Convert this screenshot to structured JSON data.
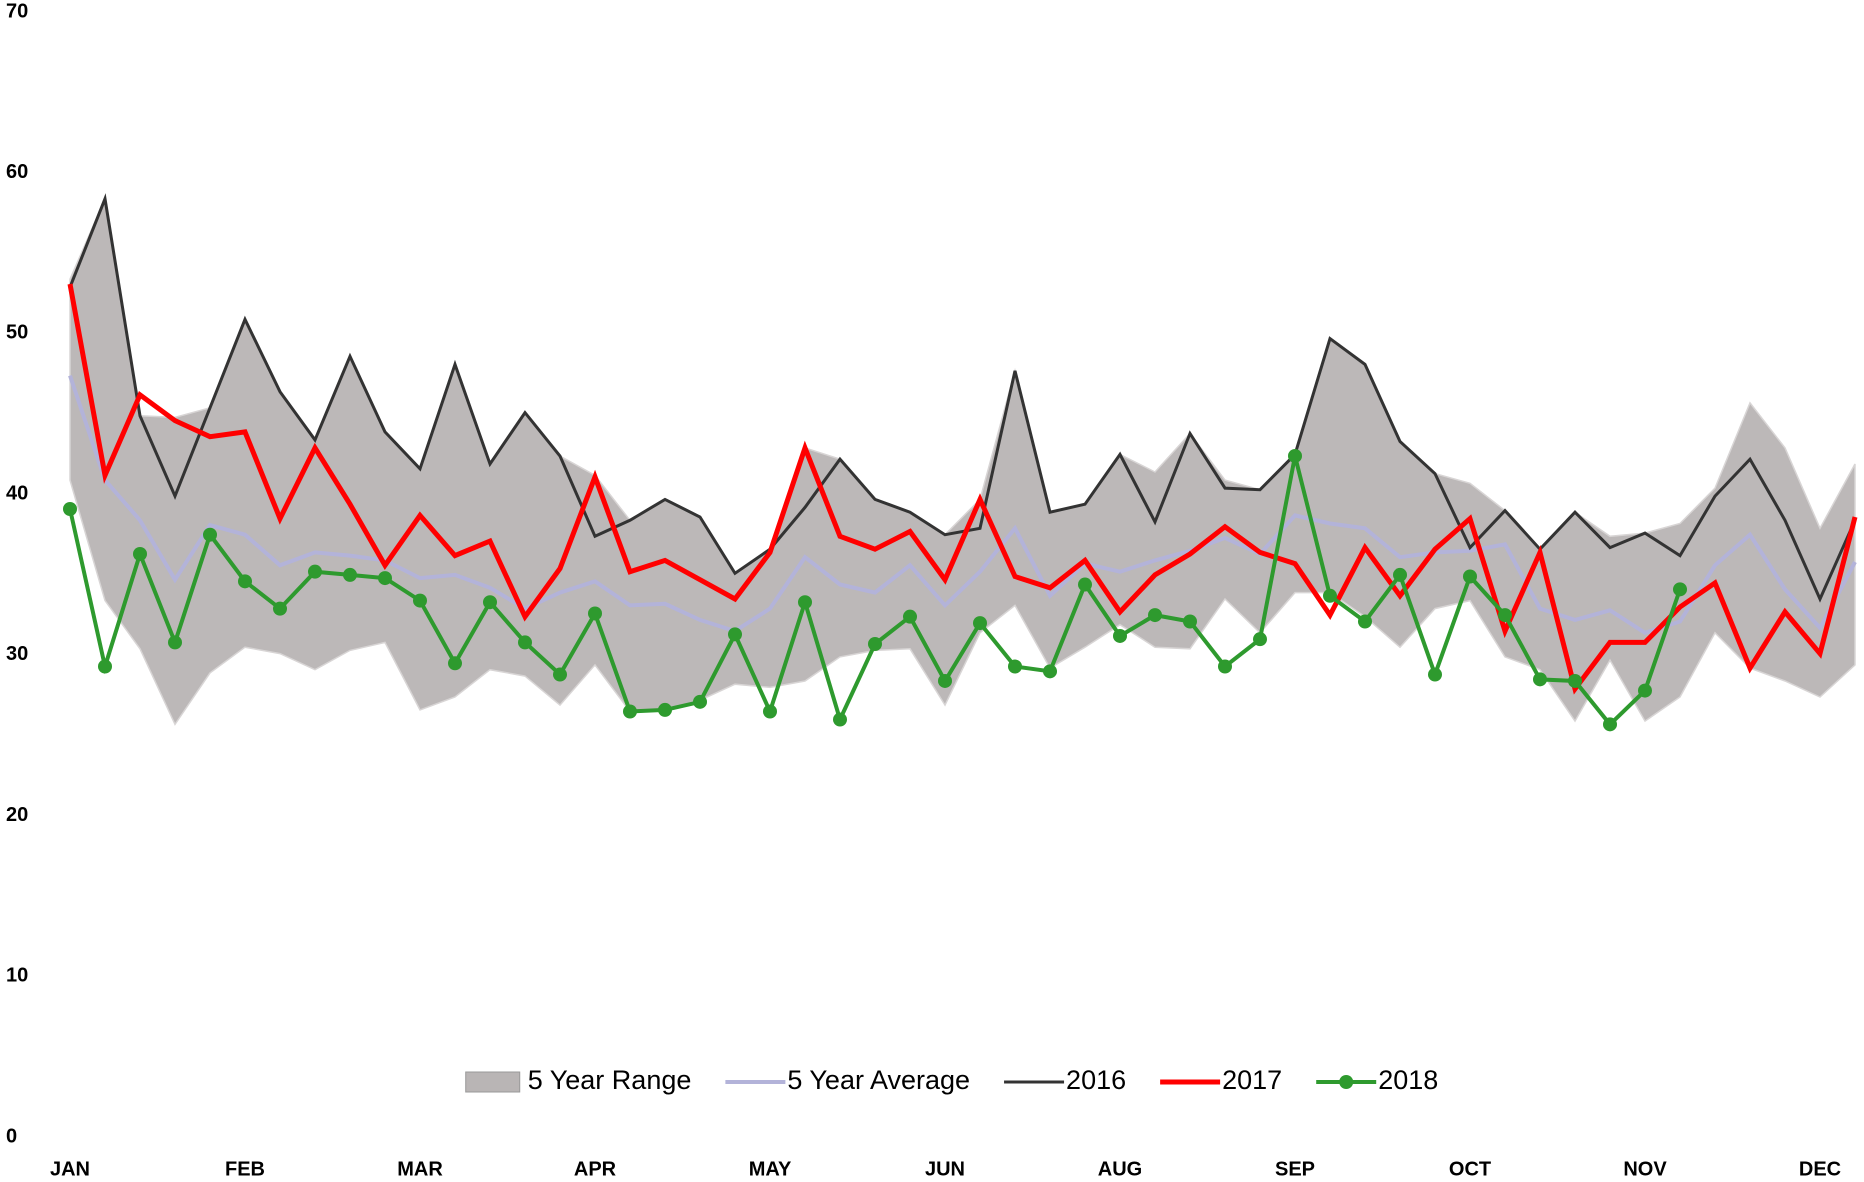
{
  "chart_data": {
    "type": "line",
    "categories": [
      "JAN",
      null,
      null,
      null,
      null,
      "FEB",
      null,
      null,
      null,
      null,
      "MAR",
      null,
      null,
      null,
      null,
      "APR",
      null,
      null,
      null,
      null,
      "MAY",
      null,
      null,
      null,
      null,
      "JUN",
      null,
      null,
      null,
      null,
      "AUG",
      null,
      null,
      null,
      null,
      "SEP",
      null,
      null,
      null,
      null,
      "OCT",
      null,
      null,
      null,
      null,
      "NOV",
      null,
      null,
      null,
      null,
      "DEC",
      null
    ],
    "ylim": [
      0,
      70
    ],
    "yticks": [
      0,
      10,
      20,
      30,
      40,
      50,
      60,
      70
    ],
    "legend": "bottom",
    "series": [
      {
        "name": "5 Year Range",
        "type": "band",
        "color": "#b9b5b5",
        "low": [
          41,
          33.5,
          30.5,
          25.8,
          29,
          30.6,
          30.2,
          29.2,
          30.4,
          30.9,
          26.7,
          27.5,
          29.2,
          28.8,
          27,
          29.5,
          26.6,
          26.7,
          27.3,
          28.3,
          28.1,
          28.5,
          30,
          30.4,
          30.5,
          27,
          31.5,
          33.2,
          29.3,
          30.6,
          32,
          30.6,
          30.5,
          33.6,
          31.5,
          34,
          34,
          32.5,
          30.6,
          33,
          33.5,
          30,
          29.2,
          26,
          29.8,
          26,
          27.5,
          31.5,
          29.3,
          28.5,
          27.5,
          29.5
        ],
        "high": [
          53.5,
          58.5,
          45,
          44.9,
          45.5,
          51,
          46.5,
          43.5,
          48.7,
          44,
          41.7,
          48.2,
          42,
          45.2,
          42.5,
          41.3,
          38.5,
          39.8,
          38.7,
          35.2,
          36.7,
          43,
          42.3,
          39.8,
          39,
          37.6,
          39.8,
          47.8,
          39,
          39.5,
          42.6,
          41.5,
          43.9,
          41,
          40.4,
          42.6,
          49.8,
          48.2,
          43.4,
          41.4,
          40.8,
          39.1,
          36.7,
          39,
          37.5,
          37.7,
          38.3,
          40.5,
          45.8,
          43,
          38,
          42
        ]
      },
      {
        "name": "5 Year Average",
        "color": "#b3b3d9",
        "width": 4,
        "values": [
          47.5,
          41,
          38.5,
          34.8,
          38.2,
          37.6,
          35.7,
          36.5,
          36.3,
          36,
          34.9,
          35.1,
          34.3,
          33,
          34,
          34.7,
          33.2,
          33.3,
          32.3,
          31.6,
          33,
          36.2,
          34.5,
          34,
          35.7,
          33.2,
          35.3,
          38,
          33.8,
          35.8,
          35.3,
          36,
          36.6,
          37.4,
          36.4,
          38.8,
          38.3,
          38,
          36.2,
          36.5,
          36.6,
          37,
          33,
          32.3,
          32.9,
          31.5,
          32.2,
          35.7,
          37.6,
          34.2,
          31.8,
          35.9
        ]
      },
      {
        "name": "2016",
        "color": "#333333",
        "width": 3,
        "values": [
          53,
          58.5,
          45,
          40,
          45.5,
          51,
          46.5,
          43.5,
          48.7,
          44,
          41.7,
          48.2,
          42,
          45.2,
          42.5,
          37.5,
          38.5,
          39.8,
          38.7,
          35.2,
          36.7,
          39.3,
          42.3,
          39.8,
          39,
          37.6,
          38,
          47.8,
          39,
          39.5,
          42.6,
          38.4,
          43.9,
          40.5,
          40.4,
          42.6,
          49.8,
          48.2,
          43.4,
          41.4,
          36.8,
          39.1,
          36.7,
          39,
          36.8,
          37.7,
          36.3,
          40,
          42.3,
          38.5,
          33.6,
          38.5
        ]
      },
      {
        "name": "2017",
        "color": "#ff0000",
        "width": 5,
        "values": [
          53.2,
          41.3,
          46.3,
          44.7,
          43.7,
          44,
          38.6,
          43,
          39.5,
          35.7,
          38.8,
          36.3,
          37.2,
          32.5,
          35.5,
          41.2,
          35.3,
          36,
          34.8,
          33.6,
          36.5,
          43,
          37.5,
          36.7,
          37.8,
          34.8,
          39.8,
          35,
          34.3,
          36,
          32.8,
          35.1,
          36.4,
          38.1,
          36.5,
          35.8,
          32.6,
          36.8,
          33.8,
          36.7,
          38.6,
          31.6,
          36.5,
          28,
          30.9,
          30.9,
          33.1,
          34.6,
          29.3,
          32.8,
          30.2,
          38.7
        ]
      },
      {
        "name": "2018",
        "color": "#2e9a2e",
        "width": 4,
        "markers": true,
        "values": [
          39.2,
          29.4,
          36.4,
          30.9,
          37.6,
          34.7,
          33,
          35.3,
          35.1,
          34.9,
          33.5,
          29.6,
          33.4,
          30.9,
          28.9,
          32.7,
          26.6,
          26.7,
          27.2,
          31.4,
          26.6,
          33.4,
          26.1,
          30.8,
          32.5,
          28.5,
          32.1,
          29.4,
          29.1,
          34.5,
          31.3,
          32.6,
          32.2,
          29.4,
          31.1,
          42.5,
          33.8,
          32.2,
          35.1,
          28.9,
          35,
          32.6,
          28.6,
          28.5,
          25.8,
          27.9,
          34.2,
          null,
          null,
          null,
          null,
          null
        ]
      }
    ]
  }
}
